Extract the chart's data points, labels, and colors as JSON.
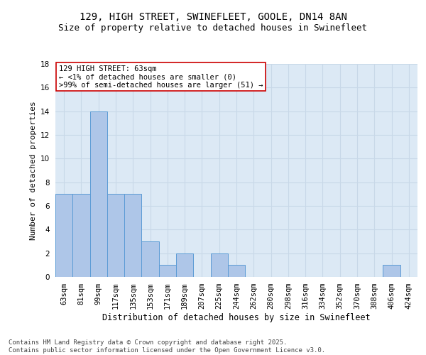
{
  "title1": "129, HIGH STREET, SWINEFLEET, GOOLE, DN14 8AN",
  "title2": "Size of property relative to detached houses in Swinefleet",
  "xlabel": "Distribution of detached houses by size in Swinefleet",
  "ylabel": "Number of detached properties",
  "categories": [
    "63sqm",
    "81sqm",
    "99sqm",
    "117sqm",
    "135sqm",
    "153sqm",
    "171sqm",
    "189sqm",
    "207sqm",
    "225sqm",
    "244sqm",
    "262sqm",
    "280sqm",
    "298sqm",
    "316sqm",
    "334sqm",
    "352sqm",
    "370sqm",
    "388sqm",
    "406sqm",
    "424sqm"
  ],
  "values": [
    7,
    7,
    14,
    7,
    7,
    3,
    1,
    2,
    0,
    2,
    1,
    0,
    0,
    0,
    0,
    0,
    0,
    0,
    0,
    1,
    0
  ],
  "bar_color": "#aec6e8",
  "bar_edge_color": "#5b9bd5",
  "ylim": [
    0,
    18
  ],
  "yticks": [
    0,
    2,
    4,
    6,
    8,
    10,
    12,
    14,
    16,
    18
  ],
  "annotation_text": "129 HIGH STREET: 63sqm\n← <1% of detached houses are smaller (0)\n>99% of semi-detached houses are larger (51) →",
  "annotation_box_color": "#ffffff",
  "annotation_box_edge": "#cc0000",
  "grid_color": "#c8d8e8",
  "bg_color": "#dce9f5",
  "footer": "Contains HM Land Registry data © Crown copyright and database right 2025.\nContains public sector information licensed under the Open Government Licence v3.0.",
  "title1_fontsize": 10,
  "title2_fontsize": 9,
  "xlabel_fontsize": 8.5,
  "ylabel_fontsize": 8,
  "tick_fontsize": 7.5,
  "annotation_fontsize": 7.5,
  "footer_fontsize": 6.5
}
